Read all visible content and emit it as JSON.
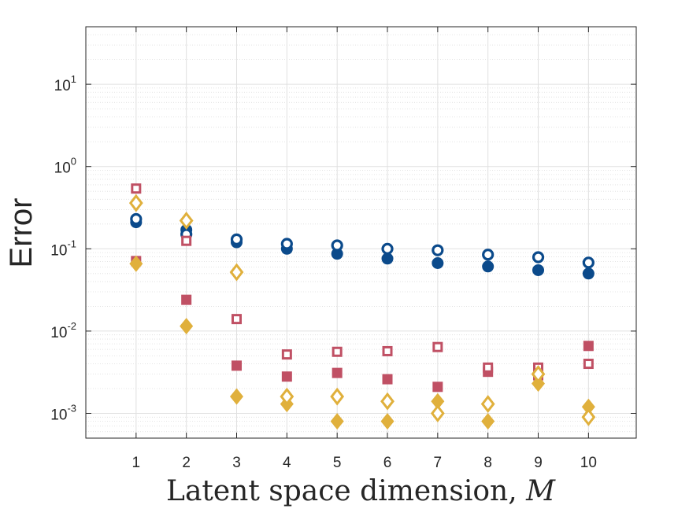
{
  "chart_data": {
    "type": "scatter",
    "xlabel": "Latent space dimension, ",
    "xlabel_var": "M",
    "ylabel": "Error",
    "yscale": "log",
    "xlim": [
      0,
      10.95
    ],
    "ylim": [
      0.0005,
      50
    ],
    "x_ticks": [
      1,
      2,
      3,
      4,
      5,
      6,
      7,
      8,
      9,
      10
    ],
    "y_ticks": [
      {
        "value": 0.001,
        "base": "10",
        "exp": "-3"
      },
      {
        "value": 0.01,
        "base": "10",
        "exp": "-2"
      },
      {
        "value": 0.1,
        "base": "10",
        "exp": "-1"
      },
      {
        "value": 1,
        "base": "10",
        "exp": "0"
      },
      {
        "value": 10,
        "base": "10",
        "exp": "1"
      }
    ],
    "grid": true,
    "legend": "none",
    "series": [
      {
        "name": "blue-filled-circle",
        "marker": "circle",
        "filled": true,
        "color": "#0b4a8b",
        "x": [
          1,
          2,
          3,
          4,
          5,
          6,
          7,
          8,
          9,
          10
        ],
        "y": [
          0.21,
          0.17,
          0.12,
          0.1,
          0.087,
          0.076,
          0.067,
          0.061,
          0.055,
          0.05
        ]
      },
      {
        "name": "blue-open-circle",
        "marker": "circle",
        "filled": false,
        "color": "#0b4a8b",
        "x": [
          1,
          2,
          3,
          4,
          5,
          6,
          7,
          8,
          9,
          10
        ],
        "y": [
          0.23,
          0.15,
          0.13,
          0.115,
          0.11,
          0.1,
          0.096,
          0.085,
          0.079,
          0.068
        ]
      },
      {
        "name": "red-filled-square",
        "marker": "square",
        "filled": true,
        "color": "#c05064",
        "x": [
          1,
          2,
          3,
          4,
          5,
          6,
          7,
          8,
          9,
          10
        ],
        "y": [
          0.071,
          0.024,
          0.0038,
          0.0028,
          0.0031,
          0.0026,
          0.0021,
          0.0032,
          0.0029,
          0.0066
        ]
      },
      {
        "name": "red-open-square",
        "marker": "square",
        "filled": false,
        "color": "#c05064",
        "x": [
          1,
          2,
          3,
          4,
          5,
          6,
          7,
          8,
          9,
          10
        ],
        "y": [
          0.54,
          0.125,
          0.014,
          0.0052,
          0.0056,
          0.0057,
          0.0064,
          0.0036,
          0.0036,
          0.004
        ]
      },
      {
        "name": "gold-filled-diamond",
        "marker": "diamond",
        "filled": true,
        "color": "#e0b03c",
        "x": [
          1,
          2,
          3,
          4,
          5,
          6,
          7,
          8,
          9,
          10
        ],
        "y": [
          0.066,
          0.0115,
          0.0016,
          0.0013,
          0.0008,
          0.0008,
          0.0014,
          0.0008,
          0.0023,
          0.0012
        ]
      },
      {
        "name": "gold-open-diamond",
        "marker": "diamond",
        "filled": false,
        "color": "#e0b03c",
        "x": [
          1,
          2,
          3,
          4,
          5,
          6,
          7,
          8,
          9,
          10
        ],
        "y": [
          0.36,
          0.22,
          0.052,
          0.0016,
          0.0016,
          0.0014,
          0.001,
          0.0013,
          0.003,
          0.0009
        ]
      }
    ]
  }
}
